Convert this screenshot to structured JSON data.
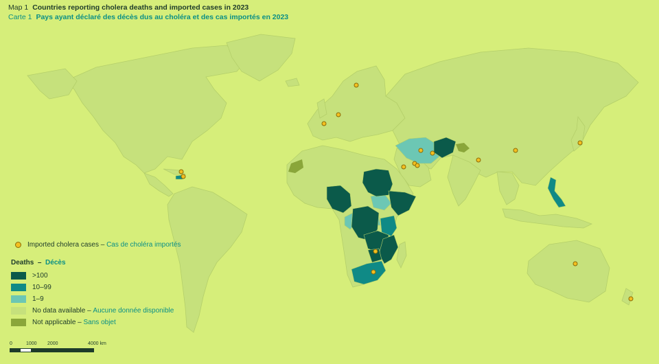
{
  "title": {
    "en_label": "Map 1",
    "en_text": "Countries reporting cholera deaths and imported cases in 2023",
    "fr_label": "Carte 1",
    "fr_text": "Pays ayant déclaré des décès dus au choléra et des cas importés en 2023"
  },
  "colors": {
    "background": "#d6ee7a",
    "land": "#c6e17c",
    "over100": "#0b5a4a",
    "from10to99": "#0f8a86",
    "from1to9": "#6cc7b4",
    "no_data": "#c6e17c",
    "not_applicable": "#8aa63a",
    "imported_dot": "#f3bf20"
  },
  "legend": {
    "imported_en": "Imported cholera cases",
    "imported_fr": "Cas de choléra importés",
    "deaths_en": "Deaths",
    "deaths_fr": "Décès",
    "categories": [
      {
        "label_en": ">100",
        "label_fr": "",
        "color_key": "over100"
      },
      {
        "label_en": "10–99",
        "label_fr": "",
        "color_key": "from10to99"
      },
      {
        "label_en": "1–9",
        "label_fr": "",
        "color_key": "from1to9"
      },
      {
        "label_en": "No data available",
        "label_fr": "Aucune donnée disponible",
        "color_key": "no_data"
      },
      {
        "label_en": "Not applicable",
        "label_fr": "Sans objet",
        "color_key": "not_applicable"
      }
    ],
    "separator": "–"
  },
  "scale": {
    "ticks": [
      "0",
      "1000",
      "2000",
      "4000 km"
    ]
  }
}
